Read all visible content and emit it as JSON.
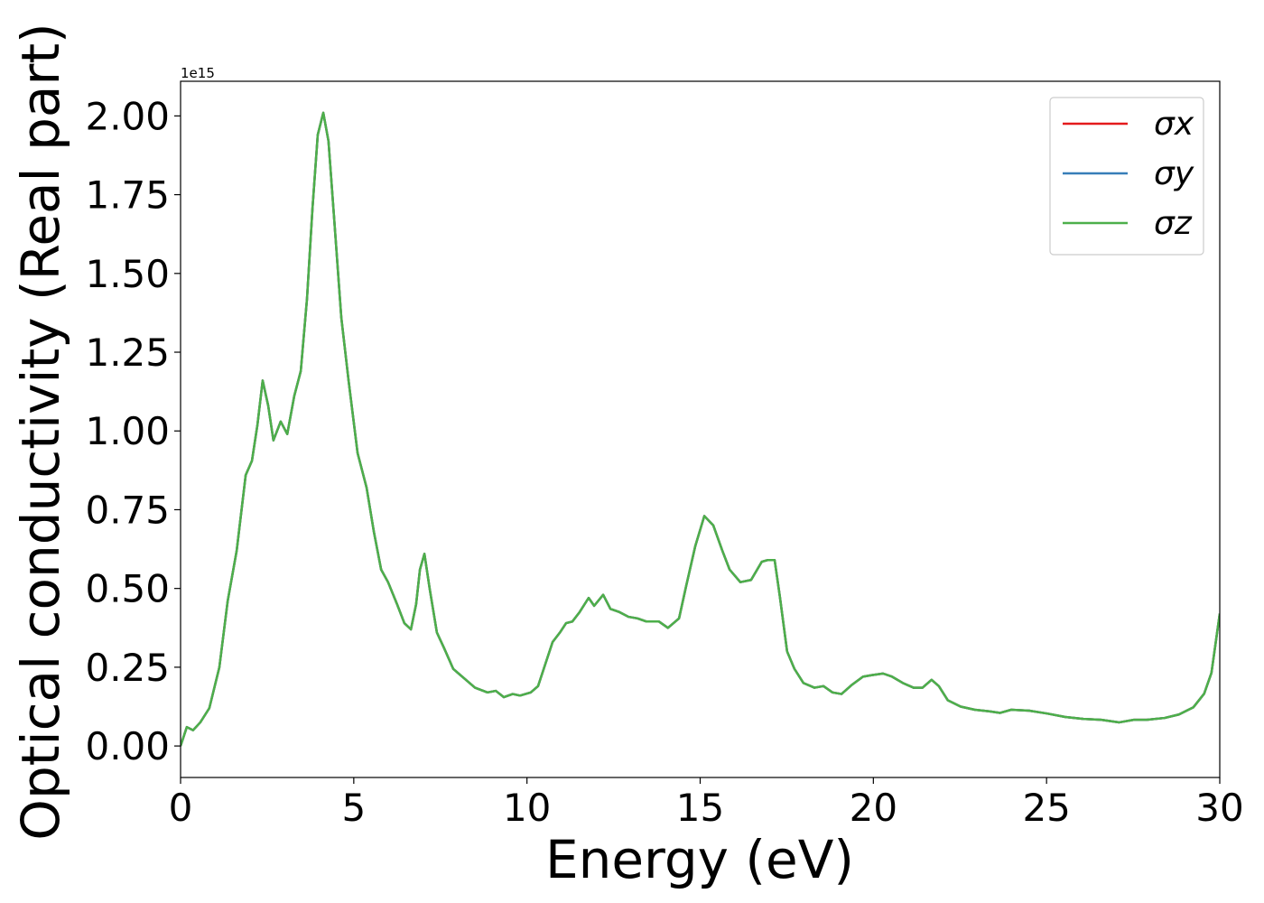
{
  "chart_data": {
    "type": "line",
    "xlabel": "Energy (eV)",
    "ylabel": "Optical conductivity (Real part)",
    "offset_label": "1e15",
    "x": [
      0,
      0.18,
      0.36,
      0.57,
      0.83,
      1.12,
      1.36,
      1.62,
      1.88,
      2.06,
      2.22,
      2.37,
      2.53,
      2.68,
      2.89,
      3.08,
      3.28,
      3.47,
      3.65,
      3.81,
      3.96,
      4.12,
      4.27,
      4.43,
      4.64,
      4.85,
      5.11,
      5.37,
      5.58,
      5.79,
      5.99,
      6.25,
      6.46,
      6.65,
      6.8,
      6.91,
      7.04,
      7.19,
      7.4,
      7.61,
      7.87,
      8.13,
      8.5,
      8.86,
      9.1,
      9.33,
      9.59,
      9.8,
      10.11,
      10.32,
      10.53,
      10.74,
      10.95,
      11.13,
      11.31,
      11.52,
      11.78,
      11.94,
      12.2,
      12.41,
      12.67,
      12.93,
      13.19,
      13.45,
      13.81,
      14.07,
      14.39,
      14.59,
      14.86,
      15.12,
      15.38,
      15.64,
      15.85,
      16.16,
      16.47,
      16.78,
      16.94,
      17.15,
      17.3,
      17.51,
      17.72,
      17.98,
      18.3,
      18.56,
      18.82,
      19.08,
      19.39,
      19.7,
      19.96,
      20.28,
      20.54,
      20.85,
      21.16,
      21.42,
      21.68,
      21.89,
      22.15,
      22.52,
      22.93,
      23.35,
      23.66,
      23.98,
      24.5,
      25.02,
      25.54,
      26.06,
      26.58,
      27.1,
      27.52,
      27.89,
      28.41,
      28.82,
      29.24,
      29.55,
      29.76,
      30
    ],
    "series": [
      {
        "name": "σx",
        "color": "#e41a1c",
        "values": [
          0,
          0.06,
          0.05,
          0.075,
          0.12,
          0.25,
          0.46,
          0.62,
          0.86,
          0.905,
          1.02,
          1.16,
          1.08,
          0.97,
          1.03,
          0.99,
          1.11,
          1.19,
          1.42,
          1.71,
          1.94,
          2.01,
          1.92,
          1.68,
          1.36,
          1.16,
          0.93,
          0.82,
          0.68,
          0.56,
          0.52,
          0.45,
          0.39,
          0.37,
          0.45,
          0.56,
          0.61,
          0.5,
          0.36,
          0.31,
          0.245,
          0.22,
          0.185,
          0.17,
          0.175,
          0.155,
          0.165,
          0.16,
          0.17,
          0.19,
          0.26,
          0.33,
          0.36,
          0.39,
          0.395,
          0.425,
          0.47,
          0.445,
          0.48,
          0.435,
          0.425,
          0.41,
          0.405,
          0.395,
          0.395,
          0.375,
          0.405,
          0.505,
          0.635,
          0.73,
          0.7,
          0.62,
          0.56,
          0.52,
          0.527,
          0.585,
          0.59,
          0.59,
          0.475,
          0.3,
          0.245,
          0.2,
          0.185,
          0.19,
          0.17,
          0.165,
          0.195,
          0.22,
          0.225,
          0.23,
          0.22,
          0.2,
          0.185,
          0.185,
          0.21,
          0.19,
          0.145,
          0.125,
          0.115,
          0.11,
          0.105,
          0.115,
          0.112,
          0.103,
          0.092,
          0.086,
          0.083,
          0.075,
          0.083,
          0.083,
          0.089,
          0.1,
          0.123,
          0.166,
          0.232,
          0.42
        ]
      },
      {
        "name": "σy",
        "color": "#377eb8",
        "values": [
          0,
          0.06,
          0.05,
          0.075,
          0.12,
          0.25,
          0.46,
          0.62,
          0.86,
          0.905,
          1.02,
          1.16,
          1.08,
          0.97,
          1.03,
          0.99,
          1.11,
          1.19,
          1.42,
          1.71,
          1.94,
          2.01,
          1.92,
          1.68,
          1.36,
          1.16,
          0.93,
          0.82,
          0.68,
          0.56,
          0.52,
          0.45,
          0.39,
          0.37,
          0.45,
          0.56,
          0.61,
          0.5,
          0.36,
          0.31,
          0.245,
          0.22,
          0.185,
          0.17,
          0.175,
          0.155,
          0.165,
          0.16,
          0.17,
          0.19,
          0.26,
          0.33,
          0.36,
          0.39,
          0.395,
          0.425,
          0.47,
          0.445,
          0.48,
          0.435,
          0.425,
          0.41,
          0.405,
          0.395,
          0.395,
          0.375,
          0.405,
          0.505,
          0.635,
          0.73,
          0.7,
          0.62,
          0.56,
          0.52,
          0.527,
          0.585,
          0.59,
          0.59,
          0.475,
          0.3,
          0.245,
          0.2,
          0.185,
          0.19,
          0.17,
          0.165,
          0.195,
          0.22,
          0.225,
          0.23,
          0.22,
          0.2,
          0.185,
          0.185,
          0.21,
          0.19,
          0.145,
          0.125,
          0.115,
          0.11,
          0.105,
          0.115,
          0.112,
          0.103,
          0.092,
          0.086,
          0.083,
          0.075,
          0.083,
          0.083,
          0.089,
          0.1,
          0.123,
          0.166,
          0.232,
          0.42
        ]
      },
      {
        "name": "σz",
        "color": "#4daf4a",
        "values": [
          0,
          0.06,
          0.05,
          0.075,
          0.12,
          0.25,
          0.46,
          0.62,
          0.86,
          0.905,
          1.02,
          1.16,
          1.08,
          0.97,
          1.03,
          0.99,
          1.11,
          1.19,
          1.42,
          1.71,
          1.94,
          2.01,
          1.92,
          1.68,
          1.36,
          1.16,
          0.93,
          0.82,
          0.68,
          0.56,
          0.52,
          0.45,
          0.39,
          0.37,
          0.45,
          0.56,
          0.61,
          0.5,
          0.36,
          0.31,
          0.245,
          0.22,
          0.185,
          0.17,
          0.175,
          0.155,
          0.165,
          0.16,
          0.17,
          0.19,
          0.26,
          0.33,
          0.36,
          0.39,
          0.395,
          0.425,
          0.47,
          0.445,
          0.48,
          0.435,
          0.425,
          0.41,
          0.405,
          0.395,
          0.395,
          0.375,
          0.405,
          0.505,
          0.635,
          0.73,
          0.7,
          0.62,
          0.56,
          0.52,
          0.527,
          0.585,
          0.59,
          0.59,
          0.475,
          0.3,
          0.245,
          0.2,
          0.185,
          0.19,
          0.17,
          0.165,
          0.195,
          0.22,
          0.225,
          0.23,
          0.22,
          0.2,
          0.185,
          0.185,
          0.21,
          0.19,
          0.145,
          0.125,
          0.115,
          0.11,
          0.105,
          0.115,
          0.112,
          0.103,
          0.092,
          0.086,
          0.083,
          0.075,
          0.083,
          0.083,
          0.089,
          0.1,
          0.123,
          0.166,
          0.232,
          0.42
        ]
      }
    ],
    "xlim": [
      0,
      30
    ],
    "xticks": [
      0,
      5,
      10,
      15,
      20,
      25,
      30
    ],
    "ylim": [
      -0.1,
      2.11
    ],
    "yticks": [
      {
        "value": 0,
        "label": "0.00"
      },
      {
        "value": 0.25,
        "label": "0.25"
      },
      {
        "value": 0.5,
        "label": "0.50"
      },
      {
        "value": 0.75,
        "label": "0.75"
      },
      {
        "value": 1,
        "label": "1.00"
      },
      {
        "value": 1.25,
        "label": "1.25"
      },
      {
        "value": 1.5,
        "label": "1.50"
      },
      {
        "value": 1.75,
        "label": "1.75"
      },
      {
        "value": 2,
        "label": "2.00"
      }
    ],
    "grid": false,
    "legend": "upper right"
  }
}
